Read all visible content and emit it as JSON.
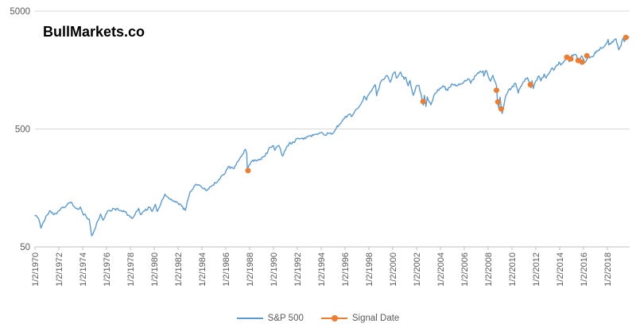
{
  "title": "BullMarkets.co",
  "colors": {
    "sp500_line": "#5B9BD5",
    "signal_marker": "#ED7D31",
    "gridline": "#D9D9D9",
    "axis_line": "#BFBFBF",
    "tick_text": "#595959",
    "legend_text": "#595959",
    "background": "#FFFFFF",
    "title_text": "#000000"
  },
  "legend": {
    "sp500": "S&P 500",
    "signal": "Signal Date"
  },
  "chart_data": {
    "type": "line",
    "title": "BullMarkets.co",
    "xlabel": "",
    "ylabel": "",
    "grid": "horizontal-major-only",
    "legend_position": "bottom",
    "y_axis": {
      "scale": "log",
      "range": [
        50,
        5000
      ],
      "ticks": [
        50,
        500,
        5000
      ],
      "tick_labels": [
        "50",
        "500",
        "5000"
      ]
    },
    "x_axis": {
      "tick_years": [
        1970,
        1972,
        1974,
        1976,
        1978,
        1980,
        1982,
        1984,
        1986,
        1988,
        1990,
        1992,
        1994,
        1996,
        1998,
        2000,
        2002,
        2004,
        2006,
        2008,
        2010,
        2012,
        2014,
        2016,
        2018
      ],
      "tick_labels": [
        "1/2/1970",
        "1/2/1972",
        "1/2/1974",
        "1/2/1976",
        "1/2/1978",
        "1/2/1980",
        "1/2/1982",
        "1/2/1984",
        "1/2/1986",
        "1/2/1988",
        "1/2/1990",
        "1/2/1992",
        "1/2/1994",
        "1/2/1996",
        "1/2/1998",
        "1/2/2000",
        "1/2/2002",
        "1/2/2004",
        "1/2/2006",
        "1/2/2008",
        "1/2/2010",
        "1/2/2012",
        "1/2/2014",
        "1/2/2016",
        "1/2/2018"
      ],
      "label_rotation_deg": -90,
      "range_years": [
        1969.9,
        2020.2
      ]
    },
    "series": [
      {
        "name": "S&P 500",
        "type": "line",
        "color": "#5B9BD5",
        "points": [
          [
            1970.0,
            92
          ],
          [
            1970.3,
            87
          ],
          [
            1970.5,
            72
          ],
          [
            1970.75,
            82
          ],
          [
            1971.0,
            93
          ],
          [
            1971.3,
            101
          ],
          [
            1971.6,
            94
          ],
          [
            1971.9,
            99
          ],
          [
            1972.2,
            107
          ],
          [
            1972.5,
            108
          ],
          [
            1972.95,
            118
          ],
          [
            1973.05,
            120
          ],
          [
            1973.3,
            110
          ],
          [
            1973.6,
            104
          ],
          [
            1973.8,
            109
          ],
          [
            1974.0,
            97
          ],
          [
            1974.3,
            90
          ],
          [
            1974.55,
            86
          ],
          [
            1974.75,
            62
          ],
          [
            1975.0,
            70
          ],
          [
            1975.25,
            83
          ],
          [
            1975.5,
            95
          ],
          [
            1975.7,
            84
          ],
          [
            1976.0,
            96
          ],
          [
            1976.2,
            102
          ],
          [
            1976.7,
            105
          ],
          [
            1977.0,
            103
          ],
          [
            1977.5,
            99
          ],
          [
            1978.15,
            87
          ],
          [
            1978.7,
            106
          ],
          [
            1978.85,
            94
          ],
          [
            1979.2,
            101
          ],
          [
            1979.6,
            108
          ],
          [
            1979.85,
            100
          ],
          [
            1980.1,
            115
          ],
          [
            1980.25,
            100
          ],
          [
            1980.9,
            140
          ],
          [
            1981.2,
            130
          ],
          [
            1981.6,
            122
          ],
          [
            1982.0,
            117
          ],
          [
            1982.3,
            111
          ],
          [
            1982.6,
            102
          ],
          [
            1982.95,
            140
          ],
          [
            1983.5,
            170
          ],
          [
            1983.9,
            164
          ],
          [
            1984.4,
            150
          ],
          [
            1984.9,
            167
          ],
          [
            1985.5,
            188
          ],
          [
            1985.95,
            211
          ],
          [
            1986.2,
            238
          ],
          [
            1986.7,
            231
          ],
          [
            1987.0,
            264
          ],
          [
            1987.3,
            292
          ],
          [
            1987.65,
            336
          ],
          [
            1987.76,
            310
          ],
          [
            1987.81,
            225
          ],
          [
            1987.95,
            247
          ],
          [
            1988.2,
            267
          ],
          [
            1988.5,
            272
          ],
          [
            1988.9,
            278
          ],
          [
            1989.3,
            295
          ],
          [
            1989.7,
            350
          ],
          [
            1990.0,
            360
          ],
          [
            1990.1,
            330
          ],
          [
            1990.45,
            362
          ],
          [
            1990.75,
            295
          ],
          [
            1991.0,
            330
          ],
          [
            1991.3,
            375
          ],
          [
            1991.7,
            385
          ],
          [
            1992.0,
            417
          ],
          [
            1992.5,
            408
          ],
          [
            1992.95,
            436
          ],
          [
            1993.5,
            450
          ],
          [
            1993.95,
            466
          ],
          [
            1994.25,
            445
          ],
          [
            1994.7,
            460
          ],
          [
            1994.95,
            459
          ],
          [
            1995.5,
            545
          ],
          [
            1995.95,
            615
          ],
          [
            1996.4,
            670
          ],
          [
            1996.55,
            635
          ],
          [
            1996.95,
            740
          ],
          [
            1997.4,
            840
          ],
          [
            1997.6,
            950
          ],
          [
            1997.8,
            880
          ],
          [
            1997.95,
            970
          ],
          [
            1998.3,
            1100
          ],
          [
            1998.55,
            1186
          ],
          [
            1998.65,
            957
          ],
          [
            1998.95,
            1229
          ],
          [
            1999.3,
            1330
          ],
          [
            1999.55,
            1418
          ],
          [
            1999.8,
            1247
          ],
          [
            2000.0,
            1455
          ],
          [
            2000.2,
            1527
          ],
          [
            2000.3,
            1356
          ],
          [
            2000.65,
            1520
          ],
          [
            2000.95,
            1320
          ],
          [
            2001.1,
            1373
          ],
          [
            2001.3,
            1160
          ],
          [
            2001.45,
            1290
          ],
          [
            2001.72,
            965
          ],
          [
            2001.95,
            1148
          ],
          [
            2002.2,
            1170
          ],
          [
            2002.56,
            797
          ],
          [
            2002.65,
            965
          ],
          [
            2002.78,
            776
          ],
          [
            2002.9,
            936
          ],
          [
            2003.2,
            800
          ],
          [
            2003.5,
            990
          ],
          [
            2003.95,
            1111
          ],
          [
            2004.3,
            1140
          ],
          [
            2004.6,
            1060
          ],
          [
            2004.95,
            1211
          ],
          [
            2005.3,
            1156
          ],
          [
            2005.95,
            1248
          ],
          [
            2006.4,
            1325
          ],
          [
            2006.55,
            1223
          ],
          [
            2006.95,
            1418
          ],
          [
            2007.4,
            1530
          ],
          [
            2007.58,
            1553
          ],
          [
            2007.63,
            1406
          ],
          [
            2007.78,
            1565
          ],
          [
            2007.95,
            1468
          ],
          [
            2008.2,
            1273
          ],
          [
            2008.4,
            1426
          ],
          [
            2008.7,
            1166
          ],
          [
            2008.79,
            848
          ],
          [
            2008.9,
            752
          ],
          [
            2009.0,
            932
          ],
          [
            2009.17,
            676
          ],
          [
            2009.45,
            940
          ],
          [
            2009.7,
            1060
          ],
          [
            2009.95,
            1115
          ],
          [
            2010.3,
            1217
          ],
          [
            2010.52,
            1010
          ],
          [
            2010.65,
            1100
          ],
          [
            2010.95,
            1257
          ],
          [
            2011.3,
            1363
          ],
          [
            2011.58,
            1120
          ],
          [
            2011.68,
            1285
          ],
          [
            2011.78,
            1099
          ],
          [
            2011.95,
            1257
          ],
          [
            2012.25,
            1408
          ],
          [
            2012.43,
            1278
          ],
          [
            2012.7,
            1465
          ],
          [
            2012.87,
            1353
          ],
          [
            2012.95,
            1426
          ],
          [
            2013.4,
            1650
          ],
          [
            2013.5,
            1573
          ],
          [
            2013.95,
            1848
          ],
          [
            2014.1,
            1742
          ],
          [
            2014.5,
            1960
          ],
          [
            2014.72,
            2011
          ],
          [
            2014.79,
            1862
          ],
          [
            2014.95,
            2059
          ],
          [
            2015.38,
            2130
          ],
          [
            2015.63,
            1868
          ],
          [
            2015.85,
            2089
          ],
          [
            2016.1,
            1829
          ],
          [
            2016.45,
            2099
          ],
          [
            2016.5,
            2001
          ],
          [
            2016.85,
            2085
          ],
          [
            2016.95,
            2239
          ],
          [
            2017.5,
            2430
          ],
          [
            2017.95,
            2674
          ],
          [
            2018.07,
            2873
          ],
          [
            2018.12,
            2581
          ],
          [
            2018.3,
            2640
          ],
          [
            2018.72,
            2914
          ],
          [
            2018.95,
            2351
          ],
          [
            2019.05,
            2448
          ],
          [
            2019.32,
            2946
          ],
          [
            2019.42,
            2752
          ],
          [
            2019.55,
            2980
          ],
          [
            2019.7,
            2926
          ],
          [
            2019.8,
            3020
          ]
        ]
      },
      {
        "name": "Signal Date",
        "type": "scatter",
        "color": "#ED7D31",
        "points": [
          [
            1987.87,
            222
          ],
          [
            2002.55,
            855
          ],
          [
            2008.7,
            1065
          ],
          [
            2008.82,
            848
          ],
          [
            2009.1,
            740
          ],
          [
            2011.55,
            1190
          ],
          [
            2014.6,
            2030
          ],
          [
            2014.93,
            1966
          ],
          [
            2015.55,
            1905
          ],
          [
            2015.88,
            1848
          ],
          [
            2016.28,
            2090
          ],
          [
            2019.55,
            2990
          ]
        ]
      }
    ]
  }
}
